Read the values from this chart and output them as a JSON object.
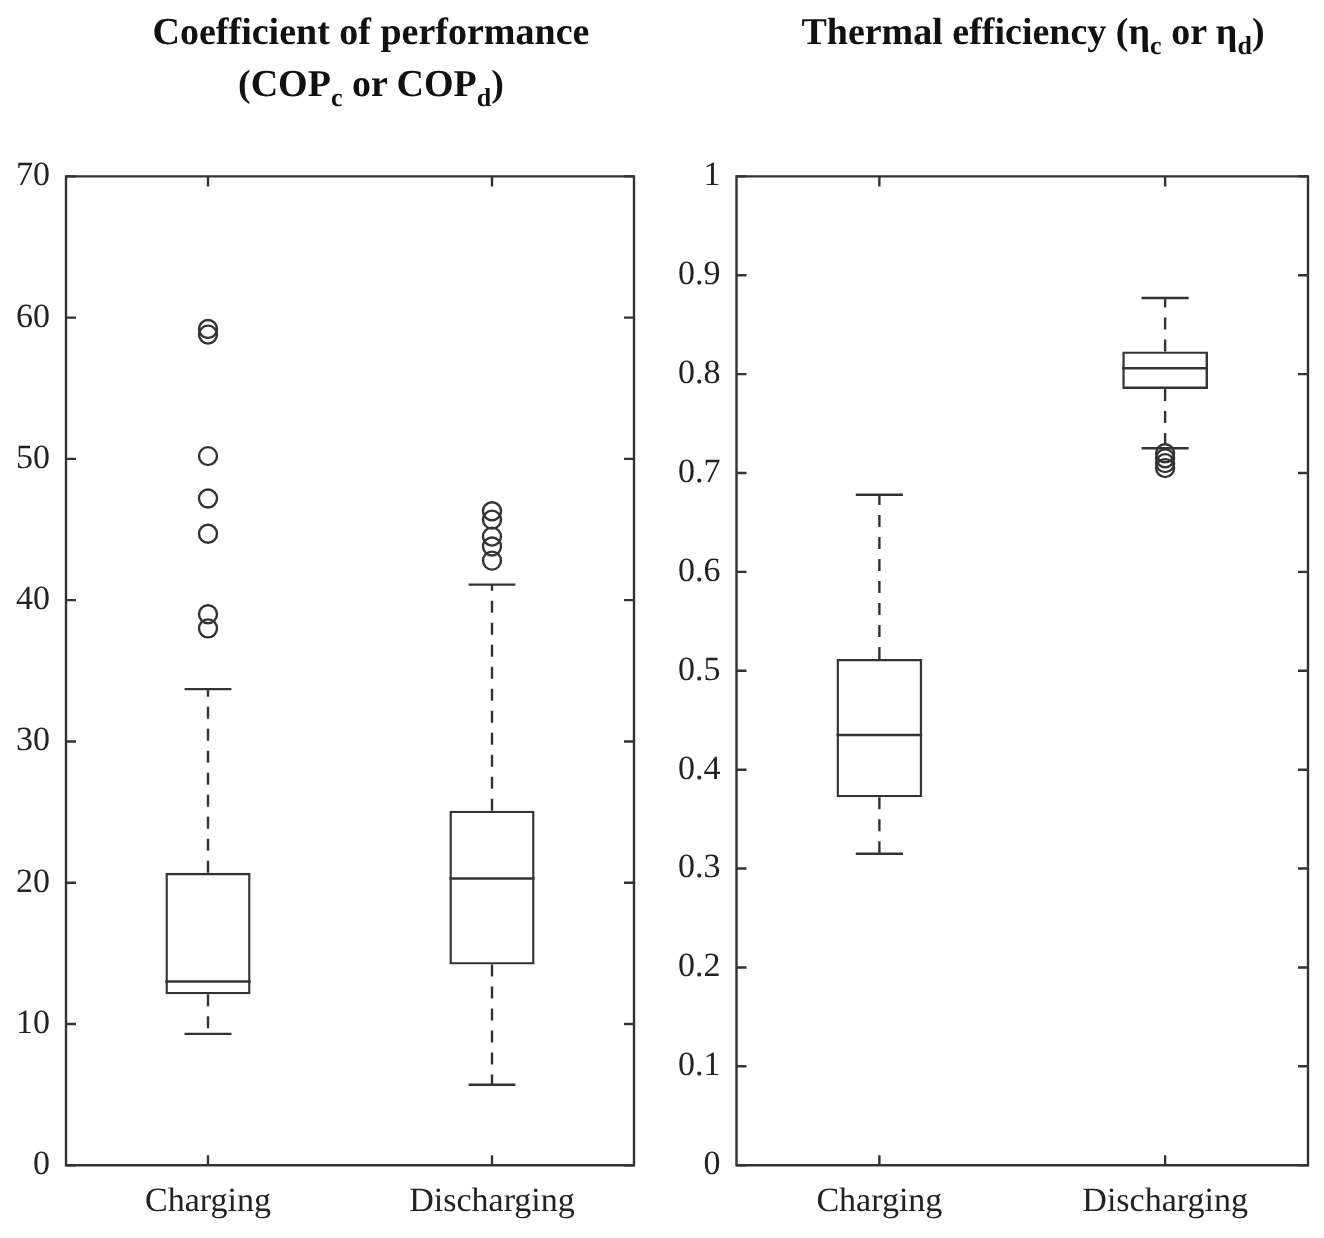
{
  "chart_data": [
    {
      "type": "box",
      "title": "Coefficient of performance (COP$_{c}$ or COP$_{d}$)",
      "categories": [
        "Charging",
        "Discharging"
      ],
      "series": [
        {
          "color": "#333333",
          "boxes": [
            {
              "low": 9.3,
              "q1": 12.1,
              "median": 13,
              "q3": 20.7,
              "high": 33.7,
              "outliers": [
                38,
                39,
                44.7,
                47.2,
                50.2,
                58.8,
                59.2
              ]
            },
            {
              "low": 5.7,
              "q1": 14.2,
              "median": 20.3,
              "q3": 25.1,
              "high": 41.1,
              "outliers": [
                42.8,
                43.8,
                44.5,
                45.7,
                46.3
              ]
            }
          ]
        }
      ],
      "ylim": [
        0,
        70
      ],
      "yticks": [
        0,
        10,
        20,
        30,
        40,
        50,
        60,
        70
      ],
      "grid": false,
      "legend": false
    },
    {
      "type": "box",
      "title": "Thermal efficiency (η$_{c}$ or η$_{d}$)",
      "categories": [
        "Charging",
        "Discharging"
      ],
      "series": [
        {
          "color": "#333333",
          "boxes": [
            {
              "low": 0.315,
              "q1": 0.372,
              "median": 0.435,
              "q3": 0.512,
              "high": 0.678
            },
            {
              "low": 0.725,
              "q1": 0.785,
              "median": 0.806,
              "q3": 0.823,
              "high": 0.877,
              "outliers": [
                0.705,
                0.71,
                0.715,
                0.72
              ]
            }
          ]
        }
      ],
      "ylim": [
        0,
        1
      ],
      "yticks": [
        0,
        0.1,
        0.2,
        0.3,
        0.4,
        0.5,
        0.6,
        0.7,
        0.8,
        0.9,
        1
      ],
      "grid": false,
      "legend": false
    }
  ]
}
